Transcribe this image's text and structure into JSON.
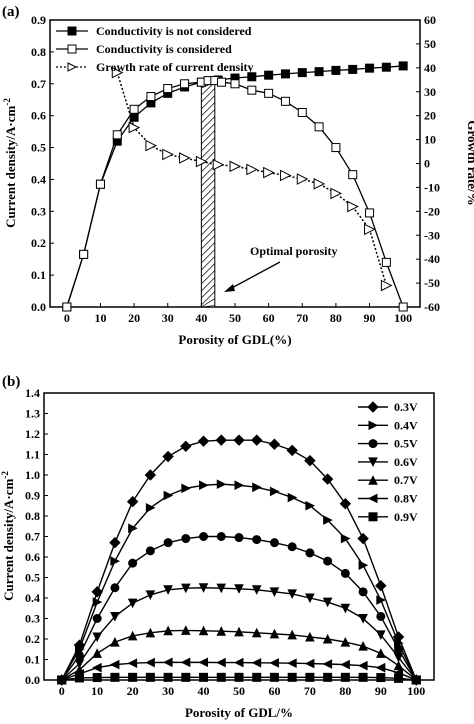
{
  "chart_data": [
    {
      "panel_label": "(a)",
      "type": "line",
      "xlabel": "Porosity of GDL(%)",
      "ylabel": "Current density/A·cm",
      "ylabel_sup": "-2",
      "y2label": "Growth rate/%",
      "xlim": [
        -5,
        105
      ],
      "ylim": [
        0,
        0.9
      ],
      "y2lim": [
        -60,
        60
      ],
      "x_ticks": [
        0,
        10,
        20,
        30,
        40,
        50,
        60,
        70,
        80,
        90,
        100
      ],
      "y_ticks": [
        0.0,
        0.1,
        0.2,
        0.3,
        0.4,
        0.5,
        0.6,
        0.7,
        0.8,
        0.9
      ],
      "y2_ticks": [
        -60,
        -50,
        -40,
        -30,
        -20,
        -10,
        0,
        10,
        20,
        30,
        40,
        50,
        60
      ],
      "legend_position": "top",
      "series": [
        {
          "name": "Conductivity is not considered",
          "marker": "filled-square",
          "x": [
            0,
            5,
            10,
            15,
            20,
            25,
            30,
            35,
            40,
            45,
            50,
            55,
            60,
            65,
            70,
            75,
            80,
            85,
            90,
            95,
            100
          ],
          "y": [
            0.0,
            0.165,
            0.385,
            0.52,
            0.595,
            0.64,
            0.67,
            0.69,
            0.705,
            0.712,
            0.718,
            0.722,
            0.727,
            0.731,
            0.735,
            0.738,
            0.742,
            0.745,
            0.749,
            0.752,
            0.756
          ]
        },
        {
          "name": "Conductivity is considered",
          "marker": "open-square",
          "x": [
            0,
            5,
            10,
            15,
            20,
            25,
            30,
            35,
            40,
            42,
            44,
            46,
            50,
            55,
            60,
            65,
            70,
            75,
            80,
            85,
            90,
            95,
            100
          ],
          "y": [
            0.0,
            0.165,
            0.385,
            0.54,
            0.62,
            0.66,
            0.685,
            0.7,
            0.705,
            0.71,
            0.71,
            0.705,
            0.7,
            0.68,
            0.67,
            0.645,
            0.61,
            0.565,
            0.5,
            0.415,
            0.295,
            0.14,
            0.0
          ]
        },
        {
          "name": "Growth rate of current density",
          "marker": "open-triangle-right",
          "axis": "right",
          "x": [
            15,
            20,
            25,
            30,
            35,
            40,
            45,
            50,
            55,
            60,
            65,
            70,
            75,
            80,
            85,
            90,
            95
          ],
          "y": [
            38,
            15,
            7.5,
            3.8,
            2.3,
            0.8,
            -0.5,
            -1.2,
            -2.5,
            -3.8,
            -5,
            -6.5,
            -8.5,
            -12.5,
            -18,
            -27.5,
            -51
          ]
        }
      ],
      "annotations": [
        {
          "text": "Optimal porosity",
          "x_range": [
            40,
            44
          ]
        }
      ]
    },
    {
      "panel_label": "(b)",
      "type": "line",
      "xlabel": "Porosity of GDL/%",
      "ylabel": "Current density/A·cm",
      "ylabel_sup": "-2",
      "xlim": [
        -5,
        105
      ],
      "ylim": [
        0,
        1.4
      ],
      "x_ticks": [
        0,
        10,
        20,
        30,
        40,
        50,
        60,
        70,
        80,
        90,
        100
      ],
      "y_ticks": [
        0.0,
        0.1,
        0.2,
        0.3,
        0.4,
        0.5,
        0.6,
        0.7,
        0.8,
        0.9,
        1.0,
        1.1,
        1.2,
        1.3,
        1.4
      ],
      "legend_position": "top-right",
      "x": [
        0,
        5,
        10,
        15,
        20,
        25,
        30,
        35,
        40,
        45,
        50,
        55,
        60,
        65,
        70,
        75,
        80,
        85,
        90,
        95,
        100
      ],
      "series": [
        {
          "name": "0.3V",
          "marker": "diamond",
          "y": [
            0.0,
            0.17,
            0.43,
            0.67,
            0.87,
            1.0,
            1.09,
            1.14,
            1.165,
            1.17,
            1.17,
            1.17,
            1.15,
            1.12,
            1.07,
            0.98,
            0.86,
            0.69,
            0.46,
            0.21,
            0.0
          ]
        },
        {
          "name": "0.4V",
          "marker": "triangle-right",
          "y": [
            0.0,
            0.15,
            0.38,
            0.58,
            0.74,
            0.84,
            0.9,
            0.935,
            0.95,
            0.955,
            0.95,
            0.94,
            0.92,
            0.89,
            0.85,
            0.78,
            0.69,
            0.56,
            0.39,
            0.18,
            0.0
          ]
        },
        {
          "name": "0.5V",
          "marker": "circle",
          "y": [
            0.0,
            0.12,
            0.3,
            0.45,
            0.57,
            0.63,
            0.67,
            0.69,
            0.7,
            0.7,
            0.695,
            0.685,
            0.67,
            0.65,
            0.62,
            0.58,
            0.52,
            0.43,
            0.31,
            0.15,
            0.0
          ]
        },
        {
          "name": "0.6V",
          "marker": "triangle-down",
          "y": [
            0.0,
            0.08,
            0.21,
            0.31,
            0.375,
            0.415,
            0.44,
            0.448,
            0.45,
            0.448,
            0.445,
            0.44,
            0.43,
            0.42,
            0.4,
            0.38,
            0.35,
            0.3,
            0.22,
            0.11,
            0.0
          ]
        },
        {
          "name": "0.7V",
          "marker": "triangle-up",
          "y": [
            0.0,
            0.05,
            0.13,
            0.185,
            0.215,
            0.23,
            0.24,
            0.242,
            0.24,
            0.238,
            0.235,
            0.23,
            0.225,
            0.22,
            0.21,
            0.2,
            0.185,
            0.165,
            0.13,
            0.07,
            0.0
          ]
        },
        {
          "name": "0.8V",
          "marker": "triangle-left",
          "y": [
            0.0,
            0.03,
            0.06,
            0.075,
            0.082,
            0.085,
            0.086,
            0.086,
            0.086,
            0.085,
            0.085,
            0.084,
            0.083,
            0.082,
            0.08,
            0.078,
            0.075,
            0.07,
            0.06,
            0.035,
            0.0
          ]
        },
        {
          "name": "0.9V",
          "marker": "square",
          "y": [
            0.0,
            0.01,
            0.012,
            0.013,
            0.013,
            0.013,
            0.013,
            0.013,
            0.013,
            0.013,
            0.013,
            0.013,
            0.013,
            0.013,
            0.013,
            0.013,
            0.013,
            0.013,
            0.012,
            0.008,
            0.0
          ]
        }
      ]
    }
  ]
}
